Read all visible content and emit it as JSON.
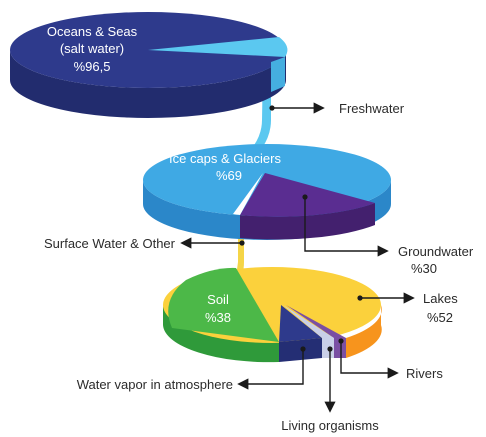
{
  "chart_data": [
    {
      "type": "pie",
      "categories": [
        "Oceans & Seas (salt water)",
        "Freshwater"
      ],
      "values": [
        96.5,
        3.5
      ],
      "labels": [
        {
          "lines": [
            "Oceans & Seas",
            "(salt water)",
            "%96,5"
          ]
        },
        {
          "lines": [
            "Freshwater"
          ]
        }
      ]
    },
    {
      "type": "pie",
      "categories": [
        "Ice caps & Glaciers",
        "Groundwater",
        "Surface Water & Other"
      ],
      "values": [
        69,
        30,
        1
      ],
      "labels": [
        {
          "lines": [
            "Ice caps & Glaciers",
            "%69"
          ]
        },
        {
          "lines": [
            "Groundwater",
            "%30"
          ]
        },
        {
          "lines": [
            "Surface Water & Other"
          ]
        }
      ]
    },
    {
      "type": "pie",
      "categories": [
        "Soil",
        "Lakes",
        "Rivers",
        "Living organisms",
        "Water vapor in atmosphere"
      ],
      "values": [
        38,
        52,
        1,
        1,
        8
      ],
      "labels": [
        {
          "lines": [
            "Soil",
            "%38"
          ]
        },
        {
          "lines": [
            "Lakes",
            "%52"
          ]
        },
        {
          "lines": [
            "Rivers"
          ]
        },
        {
          "lines": [
            "Living organisms"
          ]
        },
        {
          "lines": [
            "Water vapor in atmosphere"
          ]
        }
      ]
    }
  ],
  "colors": {
    "oceans_top": "#2e3a8c",
    "oceans_side": "#222c6e",
    "freshwater": "#5bc8f0",
    "ice_top": "#3fa9e4",
    "ice_side": "#2b87c9",
    "groundwater_top": "#5a2d91",
    "groundwater_side": "#43206e",
    "surface": "#f5d547",
    "lakes_top": "#fbd13c",
    "lakes_side": "#f7941d",
    "soil_top": "#4cb848",
    "soil_side": "#2f9a3a",
    "vapor_top": "#2e3a8c",
    "vapor_side": "#242e74",
    "organisms": "#c9cfe8",
    "rivers": "#7a4fa3",
    "arrow": "#1a1a1a",
    "label_text": "#2b2b2b"
  }
}
